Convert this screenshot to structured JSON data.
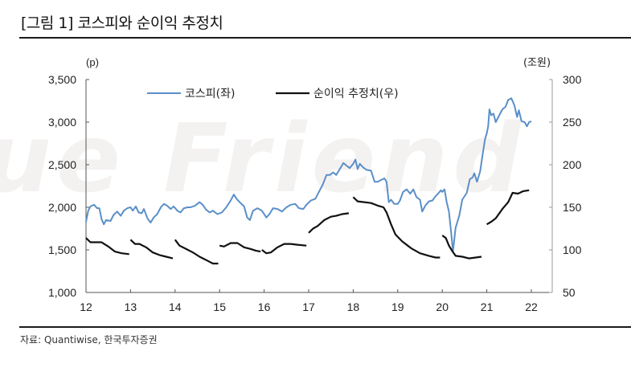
{
  "title": "[그림 1] 코스피와 순이익 추정치",
  "source": "자료: Quantiwise, 한국투자증권",
  "watermark": "ue Friend",
  "chart_data": {
    "type": "line",
    "title": "[그림 1] 코스피와 순이익 추정치",
    "xlabel": "",
    "ylabel_left": "(p)",
    "ylabel_right": "(조원)",
    "x_ticks": [
      "12",
      "13",
      "14",
      "15",
      "16",
      "17",
      "18",
      "19",
      "20",
      "21",
      "22"
    ],
    "xlim": [
      12,
      22.45
    ],
    "ylim_left": [
      1000,
      3500
    ],
    "ylim_right": [
      50,
      300
    ],
    "y_ticks_left": [
      "1,000",
      "1,500",
      "2,000",
      "2,500",
      "3,000",
      "3,500"
    ],
    "y_ticks_right": [
      "50",
      "100",
      "150",
      "200",
      "250",
      "300"
    ],
    "grid": false,
    "legend_position": "top-center",
    "colors": {
      "kospi": "#5b8fc8",
      "earnings": "#111111",
      "axis": "#555555"
    },
    "series": [
      {
        "name": "코스피(좌)",
        "axis": "left",
        "points": [
          [
            12.0,
            1830
          ],
          [
            12.05,
            1960
          ],
          [
            12.1,
            2010
          ],
          [
            12.18,
            2030
          ],
          [
            12.25,
            1990
          ],
          [
            12.3,
            1990
          ],
          [
            12.35,
            1860
          ],
          [
            12.4,
            1800
          ],
          [
            12.45,
            1850
          ],
          [
            12.55,
            1840
          ],
          [
            12.62,
            1910
          ],
          [
            12.7,
            1950
          ],
          [
            12.78,
            1900
          ],
          [
            12.85,
            1960
          ],
          [
            12.93,
            1990
          ],
          [
            13.0,
            2000
          ],
          [
            13.05,
            1960
          ],
          [
            13.12,
            2010
          ],
          [
            13.18,
            1940
          ],
          [
            13.25,
            1930
          ],
          [
            13.3,
            1980
          ],
          [
            13.38,
            1870
          ],
          [
            13.45,
            1820
          ],
          [
            13.52,
            1880
          ],
          [
            13.6,
            1920
          ],
          [
            13.68,
            2000
          ],
          [
            13.75,
            2040
          ],
          [
            13.82,
            2020
          ],
          [
            13.9,
            1980
          ],
          [
            13.97,
            2010
          ],
          [
            14.05,
            1960
          ],
          [
            14.12,
            1940
          ],
          [
            14.2,
            1990
          ],
          [
            14.28,
            2000
          ],
          [
            14.35,
            2000
          ],
          [
            14.45,
            2020
          ],
          [
            14.55,
            2060
          ],
          [
            14.62,
            2030
          ],
          [
            14.7,
            1970
          ],
          [
            14.78,
            1940
          ],
          [
            14.85,
            1960
          ],
          [
            14.95,
            1920
          ],
          [
            15.05,
            1940
          ],
          [
            15.15,
            2000
          ],
          [
            15.25,
            2080
          ],
          [
            15.32,
            2150
          ],
          [
            15.38,
            2100
          ],
          [
            15.45,
            2060
          ],
          [
            15.55,
            2010
          ],
          [
            15.62,
            1880
          ],
          [
            15.68,
            1850
          ],
          [
            15.75,
            1960
          ],
          [
            15.85,
            1990
          ],
          [
            15.95,
            1960
          ],
          [
            16.05,
            1880
          ],
          [
            16.12,
            1920
          ],
          [
            16.2,
            1990
          ],
          [
            16.3,
            1980
          ],
          [
            16.4,
            1950
          ],
          [
            16.5,
            2000
          ],
          [
            16.6,
            2030
          ],
          [
            16.7,
            2040
          ],
          [
            16.78,
            1990
          ],
          [
            16.88,
            1980
          ],
          [
            16.95,
            2030
          ],
          [
            17.05,
            2080
          ],
          [
            17.15,
            2100
          ],
          [
            17.25,
            2200
          ],
          [
            17.32,
            2270
          ],
          [
            17.4,
            2380
          ],
          [
            17.48,
            2380
          ],
          [
            17.55,
            2410
          ],
          [
            17.62,
            2380
          ],
          [
            17.7,
            2450
          ],
          [
            17.78,
            2520
          ],
          [
            17.85,
            2490
          ],
          [
            17.92,
            2460
          ],
          [
            18.0,
            2510
          ],
          [
            18.05,
            2560
          ],
          [
            18.1,
            2450
          ],
          [
            18.15,
            2510
          ],
          [
            18.22,
            2470
          ],
          [
            18.3,
            2440
          ],
          [
            18.4,
            2430
          ],
          [
            18.48,
            2300
          ],
          [
            18.55,
            2300
          ],
          [
            18.62,
            2320
          ],
          [
            18.7,
            2340
          ],
          [
            18.75,
            2300
          ],
          [
            18.8,
            2060
          ],
          [
            18.85,
            2090
          ],
          [
            18.92,
            2040
          ],
          [
            19.0,
            2040
          ],
          [
            19.05,
            2080
          ],
          [
            19.12,
            2180
          ],
          [
            19.2,
            2210
          ],
          [
            19.28,
            2160
          ],
          [
            19.35,
            2210
          ],
          [
            19.42,
            2120
          ],
          [
            19.5,
            2090
          ],
          [
            19.55,
            1950
          ],
          [
            19.62,
            2020
          ],
          [
            19.7,
            2070
          ],
          [
            19.78,
            2080
          ],
          [
            19.85,
            2130
          ],
          [
            19.92,
            2170
          ],
          [
            19.97,
            2200
          ],
          [
            20.0,
            2180
          ],
          [
            20.05,
            2210
          ],
          [
            20.1,
            2060
          ],
          [
            20.15,
            1950
          ],
          [
            20.2,
            1700
          ],
          [
            20.24,
            1480
          ],
          [
            20.3,
            1760
          ],
          [
            20.38,
            1900
          ],
          [
            20.45,
            2090
          ],
          [
            20.55,
            2170
          ],
          [
            20.62,
            2330
          ],
          [
            20.68,
            2350
          ],
          [
            20.72,
            2400
          ],
          [
            20.78,
            2300
          ],
          [
            20.85,
            2420
          ],
          [
            20.9,
            2600
          ],
          [
            20.96,
            2800
          ],
          [
            21.0,
            2870
          ],
          [
            21.03,
            2950
          ],
          [
            21.06,
            3150
          ],
          [
            21.1,
            3080
          ],
          [
            21.15,
            3100
          ],
          [
            21.2,
            3000
          ],
          [
            21.28,
            3080
          ],
          [
            21.35,
            3150
          ],
          [
            21.42,
            3180
          ],
          [
            21.48,
            3260
          ],
          [
            21.55,
            3280
          ],
          [
            21.62,
            3200
          ],
          [
            21.68,
            3060
          ],
          [
            21.72,
            3140
          ],
          [
            21.78,
            3010
          ],
          [
            21.85,
            3000
          ],
          [
            21.9,
            2950
          ],
          [
            21.95,
            3000
          ],
          [
            22.0,
            3010
          ]
        ]
      },
      {
        "name": "순이익 추정치(우)",
        "axis": "right",
        "segments": [
          [
            [
              12.0,
              114
            ],
            [
              12.1,
              109
            ],
            [
              12.2,
              109
            ],
            [
              12.35,
              109
            ],
            [
              12.5,
              104
            ],
            [
              12.65,
              98
            ],
            [
              12.8,
              96
            ],
            [
              12.97,
              95
            ]
          ],
          [
            [
              13.0,
              112
            ],
            [
              13.1,
              107
            ],
            [
              13.2,
              107
            ],
            [
              13.35,
              103
            ],
            [
              13.5,
              97
            ],
            [
              13.65,
              94
            ],
            [
              13.8,
              92
            ],
            [
              13.95,
              90
            ]
          ],
          [
            [
              14.0,
              112
            ],
            [
              14.1,
              105
            ],
            [
              14.25,
              101
            ],
            [
              14.4,
              97
            ],
            [
              14.55,
              92
            ],
            [
              14.7,
              88
            ],
            [
              14.85,
              84
            ],
            [
              14.97,
              84
            ]
          ],
          [
            [
              15.0,
              105
            ],
            [
              15.1,
              104
            ],
            [
              15.25,
              108
            ],
            [
              15.4,
              108
            ],
            [
              15.55,
              103
            ],
            [
              15.7,
              101
            ],
            [
              15.82,
              99
            ],
            [
              15.92,
              98
            ]
          ],
          [
            [
              15.95,
              100
            ],
            [
              16.05,
              96
            ],
            [
              16.15,
              97
            ],
            [
              16.3,
              103
            ],
            [
              16.45,
              107
            ],
            [
              16.6,
              107
            ],
            [
              16.75,
              106
            ],
            [
              16.95,
              105
            ]
          ],
          [
            [
              17.0,
              120
            ],
            [
              17.1,
              125
            ],
            [
              17.2,
              128
            ],
            [
              17.35,
              135
            ],
            [
              17.5,
              139
            ],
            [
              17.62,
              140
            ],
            [
              17.75,
              142
            ],
            [
              17.9,
              143
            ]
          ],
          [
            [
              18.0,
              162
            ],
            [
              18.1,
              157
            ],
            [
              18.25,
              156
            ],
            [
              18.4,
              155
            ],
            [
              18.55,
              152
            ],
            [
              18.68,
              150
            ],
            [
              18.75,
              144
            ],
            [
              18.85,
              130
            ],
            [
              18.95,
              118
            ],
            [
              19.1,
              110
            ],
            [
              19.3,
              102
            ],
            [
              19.5,
              96
            ],
            [
              19.7,
              93
            ],
            [
              19.85,
              91
            ],
            [
              19.95,
              91
            ]
          ],
          [
            [
              20.0,
              117
            ],
            [
              20.08,
              114
            ],
            [
              20.15,
              105
            ],
            [
              20.22,
              99
            ],
            [
              20.3,
              93
            ],
            [
              20.45,
              92
            ],
            [
              20.6,
              90
            ],
            [
              20.75,
              91
            ],
            [
              20.88,
              92
            ]
          ],
          [
            [
              21.0,
              130
            ],
            [
              21.1,
              133
            ],
            [
              21.2,
              137
            ],
            [
              21.35,
              148
            ],
            [
              21.48,
              156
            ],
            [
              21.58,
              167
            ],
            [
              21.7,
              166
            ],
            [
              21.82,
              169
            ],
            [
              21.95,
              170
            ]
          ]
        ]
      }
    ]
  }
}
